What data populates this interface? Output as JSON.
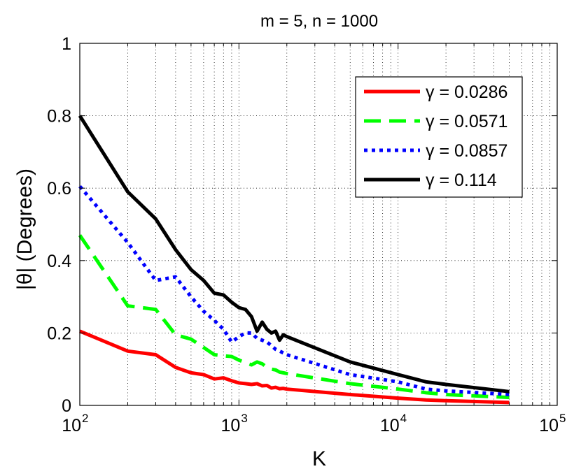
{
  "chart_data": {
    "type": "line",
    "title": "m = 5, n = 1000",
    "xlabel": "K",
    "ylabel": "|θ| (Degrees)",
    "xscale": "log",
    "xlim": [
      100,
      100000
    ],
    "ylim": [
      0,
      1
    ],
    "grid": "dotted",
    "legend_position": "top-right",
    "x_ticks": [
      {
        "value": 100,
        "base": "10",
        "exp": "2"
      },
      {
        "value": 1000,
        "base": "10",
        "exp": "3"
      },
      {
        "value": 10000,
        "base": "10",
        "exp": "4"
      },
      {
        "value": 100000,
        "base": "10",
        "exp": "5"
      }
    ],
    "y_ticks": [
      {
        "value": 0,
        "label": "0"
      },
      {
        "value": 0.2,
        "label": "0.2"
      },
      {
        "value": 0.4,
        "label": "0.4"
      },
      {
        "value": 0.6,
        "label": "0.6"
      },
      {
        "value": 0.8,
        "label": "0.8"
      },
      {
        "value": 1,
        "label": "1"
      }
    ],
    "series": [
      {
        "name": "γ = 0.0286",
        "color": "#ff0000",
        "dash": "solid",
        "x": [
          100,
          200,
          300,
          400,
          500,
          600,
          700,
          800,
          900,
          1000,
          1100,
          1200,
          1300,
          1400,
          1500,
          1600,
          1700,
          1800,
          1900,
          2000,
          5000,
          10000,
          15000,
          20000,
          50000
        ],
        "y": [
          0.205,
          0.15,
          0.14,
          0.105,
          0.09,
          0.085,
          0.073,
          0.076,
          0.068,
          0.062,
          0.06,
          0.058,
          0.06,
          0.054,
          0.055,
          0.048,
          0.05,
          0.046,
          0.047,
          0.045,
          0.03,
          0.02,
          0.015,
          0.013,
          0.008
        ]
      },
      {
        "name": "γ = 0.0571",
        "color": "#00ff00",
        "dash": "dashed",
        "x": [
          100,
          200,
          300,
          400,
          500,
          600,
          700,
          800,
          900,
          1000,
          1100,
          1200,
          1300,
          1400,
          1500,
          1600,
          1700,
          1800,
          1900,
          2000,
          5000,
          10000,
          15000,
          20000,
          50000
        ],
        "y": [
          0.47,
          0.275,
          0.265,
          0.195,
          0.183,
          0.16,
          0.14,
          0.137,
          0.135,
          0.125,
          0.118,
          0.112,
          0.12,
          0.115,
          0.105,
          0.1,
          0.098,
          0.092,
          0.09,
          0.088,
          0.06,
          0.045,
          0.035,
          0.03,
          0.022
        ]
      },
      {
        "name": "γ = 0.0857",
        "color": "#0000ff",
        "dash": "dotted",
        "x": [
          100,
          200,
          300,
          400,
          500,
          600,
          700,
          800,
          900,
          1000,
          1100,
          1200,
          1300,
          1400,
          1500,
          1600,
          1700,
          1800,
          1900,
          2000,
          5000,
          10000,
          15000,
          20000,
          50000
        ],
        "y": [
          0.605,
          0.45,
          0.345,
          0.355,
          0.3,
          0.26,
          0.235,
          0.21,
          0.175,
          0.19,
          0.2,
          0.2,
          0.185,
          0.18,
          0.175,
          0.165,
          0.155,
          0.15,
          0.145,
          0.14,
          0.085,
          0.065,
          0.045,
          0.04,
          0.03
        ]
      },
      {
        "name": "γ = 0.114",
        "color": "#000000",
        "dash": "solid",
        "x": [
          100,
          200,
          300,
          400,
          500,
          600,
          700,
          800,
          900,
          1000,
          1100,
          1200,
          1300,
          1400,
          1500,
          1600,
          1700,
          1800,
          1900,
          2000,
          5000,
          10000,
          15000,
          20000,
          50000
        ],
        "y": [
          0.8,
          0.59,
          0.515,
          0.43,
          0.375,
          0.345,
          0.31,
          0.305,
          0.285,
          0.27,
          0.265,
          0.245,
          0.205,
          0.23,
          0.21,
          0.2,
          0.205,
          0.18,
          0.195,
          0.19,
          0.12,
          0.085,
          0.065,
          0.058,
          0.038
        ]
      }
    ]
  }
}
